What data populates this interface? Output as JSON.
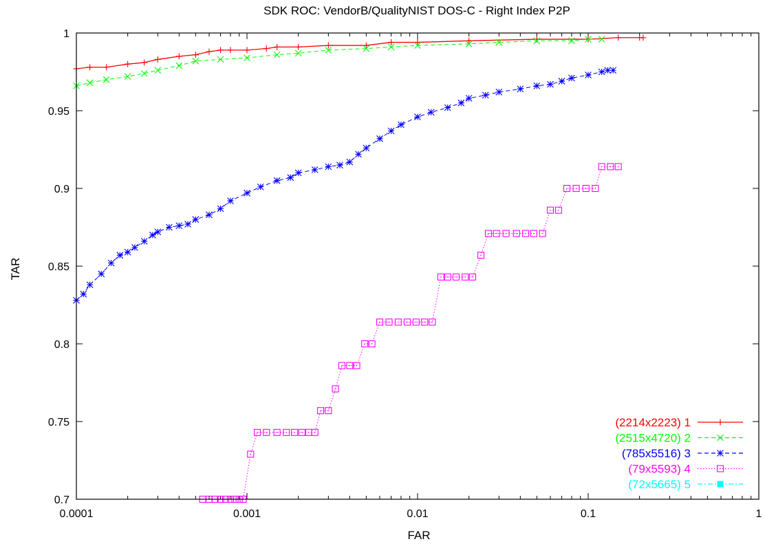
{
  "chart_data": {
    "type": "line",
    "title": "SDK ROC: VendorB/QualityNIST DOS-C - Right Index P2P",
    "xlabel": "FAR",
    "ylabel": "TAR",
    "xscale": "log",
    "xlim": [
      0.0001,
      1
    ],
    "ylim": [
      0.7,
      1.0
    ],
    "xticks": [
      {
        "value": 0.0001,
        "label": "0.0001"
      },
      {
        "value": 0.001,
        "label": "0.001"
      },
      {
        "value": 0.01,
        "label": "0.01"
      },
      {
        "value": 0.1,
        "label": "0.1"
      },
      {
        "value": 1,
        "label": "1"
      }
    ],
    "yticks": [
      {
        "value": 0.7,
        "label": "0.7"
      },
      {
        "value": 0.75,
        "label": "0.75"
      },
      {
        "value": 0.8,
        "label": "0.8"
      },
      {
        "value": 0.85,
        "label": "0.85"
      },
      {
        "value": 0.9,
        "label": "0.9"
      },
      {
        "value": 0.95,
        "label": "0.95"
      },
      {
        "value": 1.0,
        "label": "1"
      }
    ],
    "grid": false,
    "legend_position": "bottom-right",
    "series": [
      {
        "name": "(2214x2223) 1",
        "color": "#ff0000",
        "marker": "plus",
        "dash": "solid",
        "x": [
          0.0001,
          0.00012,
          0.00015,
          0.0002,
          0.00025,
          0.0003,
          0.0004,
          0.0005,
          0.0006,
          0.0007,
          0.0008,
          0.001,
          0.0013,
          0.0015,
          0.002,
          0.003,
          0.005,
          0.007,
          0.01,
          0.02,
          0.05,
          0.1,
          0.15,
          0.2,
          0.21
        ],
        "y": [
          0.977,
          0.978,
          0.978,
          0.98,
          0.981,
          0.983,
          0.985,
          0.986,
          0.988,
          0.989,
          0.989,
          0.989,
          0.99,
          0.991,
          0.991,
          0.992,
          0.992,
          0.994,
          0.994,
          0.995,
          0.996,
          0.996,
          0.997,
          0.997,
          0.997
        ]
      },
      {
        "name": "(2515x4720) 2",
        "color": "#00ff00",
        "marker": "x",
        "dash": "dashed",
        "x": [
          0.0001,
          0.00012,
          0.00015,
          0.0002,
          0.00025,
          0.0003,
          0.0004,
          0.0005,
          0.0007,
          0.001,
          0.0015,
          0.002,
          0.003,
          0.005,
          0.007,
          0.01,
          0.02,
          0.03,
          0.05,
          0.08,
          0.1,
          0.12
        ],
        "y": [
          0.966,
          0.968,
          0.97,
          0.972,
          0.974,
          0.976,
          0.979,
          0.982,
          0.983,
          0.984,
          0.986,
          0.987,
          0.989,
          0.99,
          0.991,
          0.992,
          0.993,
          0.994,
          0.995,
          0.995,
          0.996,
          0.996
        ]
      },
      {
        "name": "(785x5516) 3",
        "color": "#0000ff",
        "marker": "star",
        "dash": "dashed",
        "x": [
          0.0001,
          0.00011,
          0.00012,
          0.00014,
          0.00016,
          0.00018,
          0.0002,
          0.00022,
          0.00025,
          0.00028,
          0.0003,
          0.00035,
          0.0004,
          0.00045,
          0.0005,
          0.0006,
          0.0007,
          0.0008,
          0.001,
          0.0012,
          0.0015,
          0.0018,
          0.002,
          0.0025,
          0.003,
          0.0035,
          0.004,
          0.0045,
          0.005,
          0.006,
          0.007,
          0.008,
          0.01,
          0.012,
          0.015,
          0.018,
          0.02,
          0.025,
          0.03,
          0.04,
          0.05,
          0.06,
          0.07,
          0.08,
          0.1,
          0.12,
          0.13,
          0.14
        ],
        "y": [
          0.828,
          0.832,
          0.838,
          0.845,
          0.852,
          0.857,
          0.859,
          0.862,
          0.866,
          0.87,
          0.872,
          0.875,
          0.876,
          0.877,
          0.88,
          0.883,
          0.887,
          0.892,
          0.897,
          0.901,
          0.905,
          0.907,
          0.91,
          0.912,
          0.914,
          0.915,
          0.917,
          0.922,
          0.926,
          0.932,
          0.937,
          0.941,
          0.946,
          0.949,
          0.952,
          0.955,
          0.958,
          0.96,
          0.962,
          0.964,
          0.966,
          0.967,
          0.969,
          0.971,
          0.973,
          0.975,
          0.976,
          0.976
        ]
      },
      {
        "name": "(79x5593) 4",
        "color": "#ff00ff",
        "marker": "square",
        "dash": "dotted",
        "x": [
          0.00055,
          0.0006,
          0.00065,
          0.0007,
          0.00075,
          0.0008,
          0.00085,
          0.0009,
          0.00095,
          0.00105,
          0.00115,
          0.0013,
          0.0015,
          0.0017,
          0.0019,
          0.0021,
          0.0023,
          0.0025,
          0.0027,
          0.003,
          0.0033,
          0.0036,
          0.004,
          0.0044,
          0.0049,
          0.0054,
          0.006,
          0.0068,
          0.0077,
          0.0087,
          0.0098,
          0.011,
          0.0122,
          0.0137,
          0.015,
          0.0168,
          0.019,
          0.021,
          0.0235,
          0.026,
          0.029,
          0.033,
          0.038,
          0.043,
          0.048,
          0.054,
          0.06,
          0.067,
          0.075,
          0.085,
          0.097,
          0.11,
          0.12,
          0.135,
          0.15
        ],
        "y": [
          0.7,
          0.7,
          0.7,
          0.7,
          0.7,
          0.7,
          0.7,
          0.7,
          0.7,
          0.729,
          0.743,
          0.743,
          0.743,
          0.743,
          0.743,
          0.743,
          0.743,
          0.743,
          0.757,
          0.757,
          0.771,
          0.786,
          0.786,
          0.786,
          0.8,
          0.8,
          0.814,
          0.814,
          0.814,
          0.814,
          0.814,
          0.814,
          0.814,
          0.843,
          0.843,
          0.843,
          0.843,
          0.843,
          0.857,
          0.871,
          0.871,
          0.871,
          0.871,
          0.871,
          0.871,
          0.871,
          0.886,
          0.886,
          0.9,
          0.9,
          0.9,
          0.9,
          0.914,
          0.914,
          0.914
        ]
      },
      {
        "name": "(72x5665) 5",
        "color": "#00ffff",
        "marker": "filled-square",
        "dash": "dashdot",
        "x": [],
        "y": []
      }
    ]
  }
}
